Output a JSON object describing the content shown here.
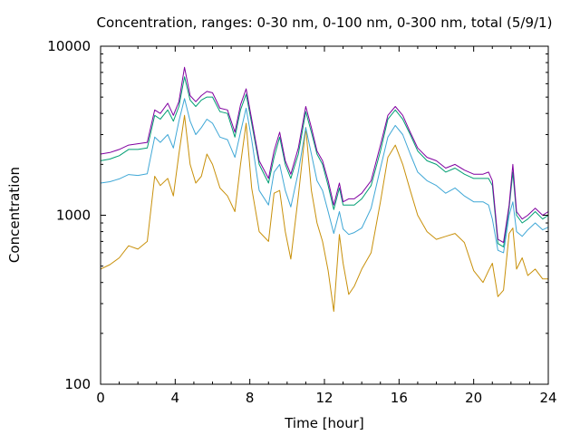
{
  "chart_data": {
    "type": "line",
    "title": "Concentration, ranges: 0-30 nm, 0-100 nm, 0-300 nm, total (5/9/1)",
    "xlabel": "Time [hour]",
    "ylabel": "Concentration",
    "xlim": [
      0,
      24
    ],
    "ylim": [
      100,
      10000
    ],
    "yscale": "log",
    "grid": false,
    "legend": "none",
    "xticks": [
      0,
      4,
      8,
      12,
      16,
      20,
      24
    ],
    "xtick_labels": [
      "0",
      "4",
      "8",
      "12",
      "16",
      "20",
      "24"
    ],
    "yticks": [
      100,
      1000,
      10000
    ],
    "ytick_labels": [
      "100",
      "1000",
      "10000"
    ],
    "x": [
      0,
      0.5,
      1,
      1.5,
      2,
      2.5,
      2.9,
      3.2,
      3.6,
      3.9,
      4.2,
      4.5,
      4.8,
      5.1,
      5.4,
      5.7,
      6,
      6.4,
      6.8,
      7.2,
      7.5,
      7.8,
      8.1,
      8.5,
      9,
      9.3,
      9.6,
      9.9,
      10.2,
      10.6,
      11,
      11.3,
      11.6,
      11.9,
      12.2,
      12.5,
      12.8,
      13,
      13.3,
      13.6,
      14,
      14.5,
      15,
      15.4,
      15.8,
      16.2,
      16.6,
      17,
      17.5,
      18,
      18.5,
      19,
      19.5,
      20,
      20.5,
      20.8,
      21,
      21.3,
      21.6,
      21.9,
      22.1,
      22.3,
      22.6,
      22.9,
      23.3,
      23.7,
      24
    ],
    "series": [
      {
        "color": "#c8900a",
        "values": [
          480,
          510,
          560,
          660,
          630,
          700,
          1700,
          1500,
          1650,
          1300,
          2300,
          3900,
          2000,
          1550,
          1700,
          2300,
          2000,
          1450,
          1300,
          1050,
          2000,
          3500,
          1450,
          800,
          700,
          1350,
          1400,
          800,
          550,
          1300,
          3300,
          1400,
          900,
          700,
          470,
          270,
          770,
          520,
          340,
          380,
          480,
          600,
          1200,
          2200,
          2600,
          2000,
          1400,
          1000,
          800,
          720,
          750,
          780,
          690,
          470,
          400,
          470,
          520,
          330,
          360,
          780,
          840,
          480,
          560,
          440,
          480,
          420,
          420
        ]
      },
      {
        "color": "#3fa7d6",
        "values": [
          1550,
          1580,
          1640,
          1740,
          1720,
          1760,
          2900,
          2700,
          3000,
          2500,
          3600,
          4900,
          3600,
          3000,
          3300,
          3700,
          3500,
          2900,
          2800,
          2200,
          3100,
          4300,
          2800,
          1400,
          1150,
          1800,
          2000,
          1400,
          1120,
          1800,
          3300,
          2300,
          1600,
          1400,
          1050,
          780,
          1050,
          830,
          770,
          790,
          840,
          1100,
          1900,
          2900,
          3400,
          3000,
          2300,
          1800,
          1600,
          1500,
          1350,
          1450,
          1300,
          1200,
          1200,
          1150,
          950,
          620,
          600,
          1000,
          1200,
          800,
          750,
          820,
          900,
          820,
          850
        ]
      },
      {
        "color": "#009e73",
        "values": [
          2100,
          2150,
          2250,
          2450,
          2450,
          2500,
          3900,
          3700,
          4200,
          3600,
          4400,
          6600,
          4800,
          4400,
          4800,
          5000,
          5000,
          4100,
          4000,
          2900,
          4200,
          5200,
          3500,
          2000,
          1550,
          2200,
          2900,
          2000,
          1650,
          2300,
          4100,
          3100,
          2300,
          2000,
          1500,
          1080,
          1450,
          1150,
          1150,
          1150,
          1250,
          1500,
          2400,
          3700,
          4200,
          3700,
          3000,
          2400,
          2100,
          2000,
          1800,
          1900,
          1750,
          1650,
          1650,
          1650,
          1500,
          680,
          650,
          1100,
          1800,
          1000,
          900,
          950,
          1050,
          950,
          1000
        ]
      },
      {
        "color": "#8000a0",
        "values": [
          2300,
          2350,
          2450,
          2600,
          2650,
          2700,
          4200,
          4000,
          4600,
          3900,
          4700,
          7500,
          5100,
          4700,
          5100,
          5400,
          5300,
          4300,
          4200,
          3100,
          4500,
          5600,
          3700,
          2100,
          1650,
          2400,
          3100,
          2100,
          1750,
          2500,
          4400,
          3300,
          2400,
          2100,
          1600,
          1150,
          1550,
          1200,
          1250,
          1250,
          1350,
          1600,
          2600,
          3900,
          4400,
          3900,
          3100,
          2500,
          2200,
          2100,
          1900,
          2000,
          1850,
          1750,
          1750,
          1800,
          1600,
          720,
          690,
          1150,
          2000,
          1050,
          950,
          1000,
          1100,
          1000,
          1050
        ]
      }
    ]
  }
}
